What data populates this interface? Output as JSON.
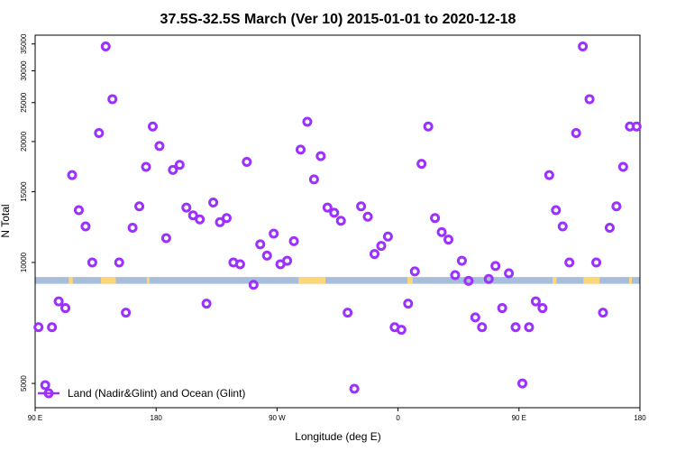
{
  "chart_data": {
    "type": "scatter",
    "title": "37.5S-32.5S March (Ver 10)   2015-01-01 to 2020-12-18",
    "xlabel": "Longitude (deg E)",
    "ylabel": "N Total",
    "xlim": [
      90,
      540
    ],
    "ylim": [
      4350,
      36800
    ],
    "y_scale": "log",
    "x_ticks": [
      {
        "value": 90,
        "label": "90 E"
      },
      {
        "value": 180,
        "label": "180"
      },
      {
        "value": 270,
        "label": "90 W"
      },
      {
        "value": 360,
        "label": "0"
      },
      {
        "value": 450,
        "label": "90 E"
      },
      {
        "value": 540,
        "label": "180"
      }
    ],
    "y_ticks": [
      5000,
      10000,
      15000,
      20000,
      25000,
      30000,
      35000
    ],
    "colors": {
      "points": "#9b30ff",
      "ocean_band": "#a6bddb",
      "land_band": "#fdd67a",
      "legend_line": "#9b30ff"
    },
    "legend": {
      "label": "Land (Nadir&Glint) and Ocean (Glint)",
      "position": "bottom-left"
    },
    "band": {
      "y_top": 9200,
      "y_bottom": 8850,
      "land_segments": [
        [
          115,
          118
        ],
        [
          139,
          150
        ],
        [
          173,
          175
        ],
        [
          286,
          306
        ],
        [
          367,
          371
        ],
        [
          475,
          478
        ],
        [
          498,
          510
        ],
        [
          532,
          534
        ]
      ]
    },
    "series": [
      {
        "name": "Land (Nadir&Glint) and Ocean (Glint)",
        "x": [
          92.5,
          97.5,
          102.5,
          107.5,
          112.5,
          117.5,
          122.5,
          127.5,
          132.5,
          137.5,
          142.5,
          147.5,
          152.5,
          157.5,
          162.5,
          167.5,
          172.5,
          177.5,
          182.5,
          187.5,
          192.5,
          197.5,
          202.5,
          207.5,
          212.5,
          217.5,
          222.5,
          227.5,
          232.5,
          237.5,
          242.5,
          247.5,
          252.5,
          257.5,
          262.5,
          267.5,
          272.5,
          277.5,
          282.5,
          287.5,
          292.5,
          297.5,
          302.5,
          307.5,
          312.5,
          317.5,
          322.5,
          327.5,
          332.5,
          337.5,
          342.5,
          347.5,
          352.5,
          357.5,
          362.5,
          367.5,
          372.5,
          377.5,
          382.5,
          387.5,
          392.5,
          397.5,
          402.5,
          407.5,
          412.5,
          417.5,
          422.5,
          427.5,
          432.5,
          437.5,
          442.5,
          447.5,
          452.5,
          457.5,
          462.5,
          467.5,
          472.5,
          477.5,
          482.5,
          487.5,
          492.5,
          497.5,
          502.5,
          507.5,
          512.5,
          517.5,
          522.5,
          527.5,
          532.5,
          537.5
        ],
        "values": [
          6900,
          4950,
          6900,
          8000,
          7700,
          16500,
          13500,
          12300,
          10000,
          21000,
          34500,
          25500,
          10000,
          7500,
          12200,
          13800,
          17300,
          21800,
          19500,
          11500,
          17000,
          17500,
          13700,
          13100,
          12800,
          7900,
          14100,
          12600,
          12900,
          10000,
          9900,
          17800,
          8800,
          11100,
          10400,
          11800,
          9900,
          10100,
          11300,
          19100,
          22400,
          16100,
          18400,
          13700,
          13300,
          12700,
          7500,
          4850,
          13800,
          13000,
          10500,
          11000,
          11600,
          6900,
          6800,
          7900,
          9500,
          17600,
          21800,
          12900,
          11900,
          11400,
          9300,
          10100,
          9000,
          7300,
          6900,
          9100,
          9800,
          7700,
          9400,
          6900,
          5000,
          6900,
          8000,
          7700,
          16500,
          13500,
          12300,
          10000,
          21000,
          34500,
          25500,
          10000,
          7500,
          12200,
          13800,
          17300,
          21800,
          21800
        ]
      }
    ]
  }
}
